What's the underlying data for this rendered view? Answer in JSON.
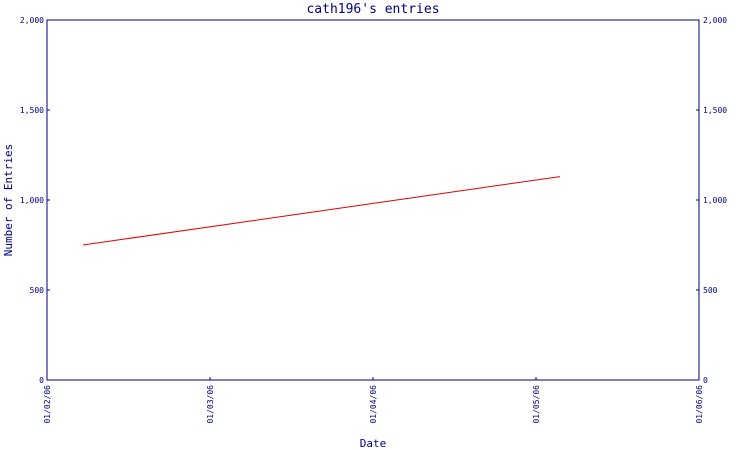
{
  "chart_data": {
    "type": "line",
    "title": "cath196's entries",
    "xlabel": "Date",
    "ylabel": "Number of Entries",
    "x_tick_labels": [
      "01/02/06",
      "01/03/06",
      "01/04/06",
      "01/05/06",
      "01/06/06"
    ],
    "y_tick_labels": [
      "0",
      "500",
      "1,000",
      "1,500",
      "2,000"
    ],
    "y_ticks": [
      0,
      500,
      1000,
      1500,
      2000
    ],
    "ylim": [
      0,
      2000
    ],
    "xlim": [
      "2006-01-02",
      "2006-01-06"
    ],
    "series": [
      {
        "x": [
          "2006-01-02",
          "2006-01-05"
        ],
        "values": [
          750,
          1130
        ],
        "color": "#e00000"
      }
    ],
    "grid": false,
    "mirror_y_axis_right": true,
    "axis_color": "#00007f"
  }
}
